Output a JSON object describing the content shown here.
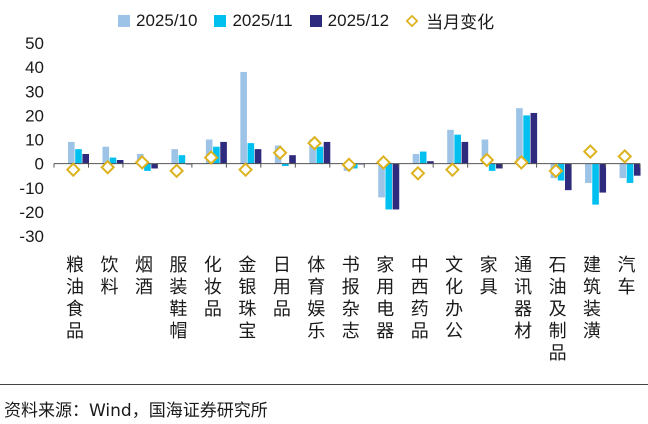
{
  "chart_data": {
    "type": "bar",
    "categories": [
      "粮油食品",
      "饮料",
      "烟酒",
      "服装鞋帽",
      "化妆品",
      "金银珠宝",
      "日用品",
      "体育娱乐",
      "书报杂志",
      "家用电器",
      "中西药品",
      "文化办公",
      "家具",
      "通讯器材",
      "石油及制品",
      "建筑装潢",
      "汽车"
    ],
    "series": [
      {
        "name": "2025/10",
        "color": "#9DC3E6",
        "values": [
          9,
          7,
          4,
          6,
          10,
          38,
          7.5,
          10,
          -3,
          -14,
          4,
          14,
          10,
          23,
          -6,
          -8,
          -6
        ]
      },
      {
        "name": "2025/11",
        "color": "#00C0F0",
        "values": [
          6,
          2.5,
          -3,
          3.5,
          7,
          8.5,
          -1,
          7,
          -2,
          -19,
          5,
          12,
          -3,
          20,
          -7,
          -17,
          -8
        ]
      },
      {
        "name": "2025/12",
        "color": "#2E2A7E",
        "values": [
          4,
          1.5,
          -2,
          0,
          9,
          6,
          3.5,
          9,
          0,
          -19,
          1,
          9,
          -2,
          21,
          -11,
          -12,
          -5
        ]
      }
    ],
    "marker_series": {
      "name": "当月变化",
      "color": "#DDB21F",
      "values": [
        -2.5,
        -1.5,
        0.5,
        -3,
        2.5,
        -2.5,
        4.5,
        8.5,
        -0.5,
        0.5,
        -4,
        -2.5,
        1.5,
        0.5,
        -3,
        5,
        3
      ]
    },
    "ylim": [
      -30,
      50
    ],
    "yticks": [
      "50",
      "40",
      "30",
      "20",
      "10",
      "0",
      "-10",
      "-20",
      "-30"
    ]
  },
  "legend": [
    "2025/10",
    "2025/11",
    "2025/12",
    "当月变化"
  ],
  "source_text": "资料来源：Wind，国海证券研究所"
}
